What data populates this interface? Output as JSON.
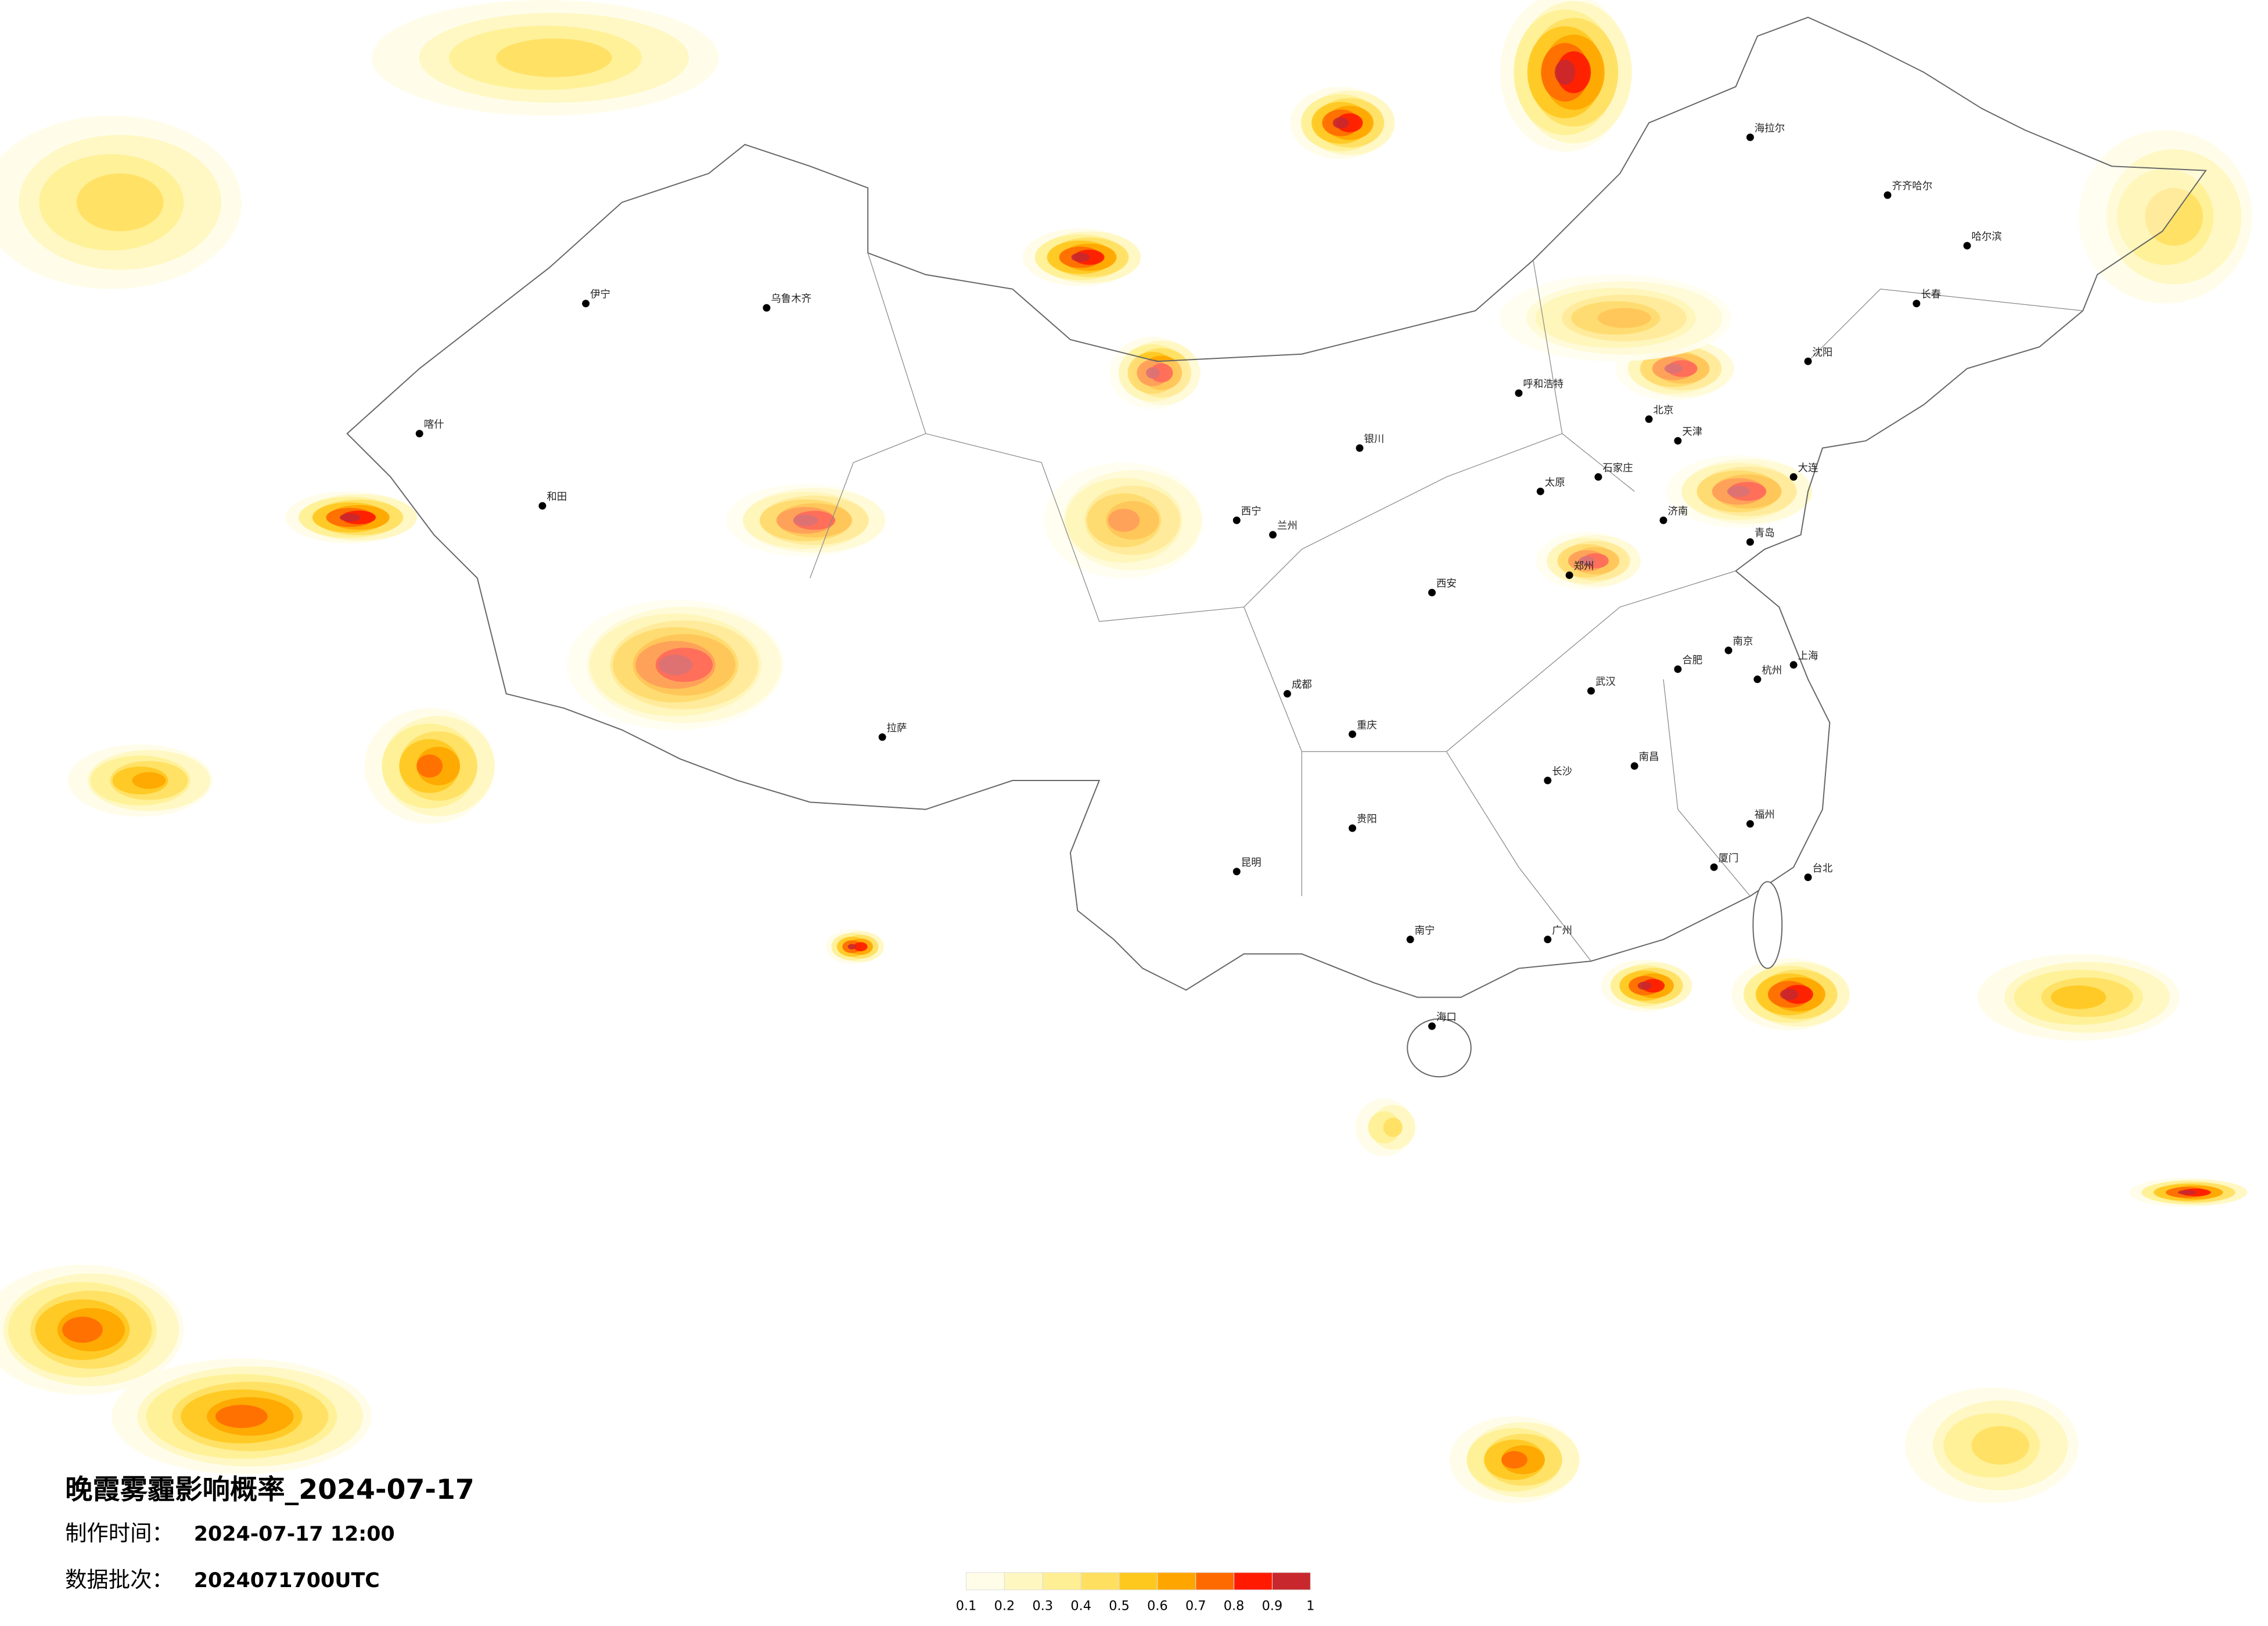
{
  "header": {
    "title": "晚霞雾霾影响概率_2024-07-17",
    "made_label": "制作时间：",
    "made_time": "2024-07-17 12:00",
    "batch_label": "数据批次：",
    "batch": "2024071700UTC"
  },
  "legend": {
    "colors": [
      "#fffde8",
      "#fff7c0",
      "#ffef94",
      "#ffdf60",
      "#ffc81e",
      "#ffa500",
      "#ff6a00",
      "#ff1a00",
      "#c8282d"
    ],
    "labels": [
      0.1,
      0.2,
      0.3,
      0.4,
      0.5,
      0.6,
      0.7,
      0.8,
      0.9,
      1
    ]
  },
  "cities": [
    "北京",
    "天津",
    "石家庄",
    "太原",
    "呼和浩特",
    "沈阳",
    "长春",
    "哈尔滨",
    "济南",
    "郑州",
    "西安",
    "兰州",
    "西宁",
    "银川",
    "乌鲁木齐",
    "拉萨",
    "成都",
    "重庆",
    "贵阳",
    "昆明",
    "南宁",
    "广州",
    "长沙",
    "武汉",
    "南昌",
    "杭州",
    "上海",
    "南京",
    "合肥",
    "福州",
    "海口",
    "台北",
    "和田",
    "喀什",
    "伊宁",
    "齐齐哈尔",
    "海拉尔",
    "大连",
    "青岛",
    "厦门"
  ]
}
